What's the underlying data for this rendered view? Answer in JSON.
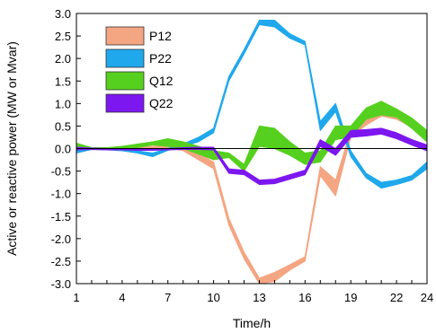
{
  "chart_data": {
    "type": "area",
    "title": "",
    "xlabel": "Time/h",
    "ylabel": "Active or reactive power (MW or Mvar)",
    "xlim": [
      1,
      24
    ],
    "ylim": [
      -3.0,
      3.0
    ],
    "x_ticks": [
      1,
      4,
      7,
      10,
      13,
      16,
      19,
      22,
      24
    ],
    "y_ticks": [
      "3.0",
      "2.5",
      "2.0",
      "1.5",
      "1.0",
      "0.5",
      "0.0",
      "-0.5",
      "-1.0",
      "-1.5",
      "-2.0",
      "-2.5",
      "-3.0"
    ],
    "y_tick_values": [
      3.0,
      2.5,
      2.0,
      1.5,
      1.0,
      0.5,
      0.0,
      -0.5,
      -1.0,
      -1.5,
      -2.0,
      -2.5,
      -3.0
    ],
    "grid": false,
    "legend_position": "top-left",
    "x": [
      1,
      2,
      3,
      4,
      5,
      6,
      7,
      8,
      9,
      10,
      11,
      12,
      13,
      14,
      15,
      16,
      17,
      18,
      19,
      20,
      21,
      22,
      23,
      24
    ],
    "series": [
      {
        "name": "P12",
        "color": "#F4A582",
        "upper": [
          0.02,
          0.0,
          0.0,
          0.0,
          0.02,
          0.05,
          0.08,
          0.02,
          -0.12,
          -0.3,
          -1.55,
          -2.3,
          -2.88,
          -2.75,
          -2.58,
          -2.4,
          -0.4,
          -0.7,
          0.4,
          0.65,
          0.82,
          0.75,
          0.62,
          0.3
        ],
        "lower": [
          0.0,
          -0.02,
          -0.02,
          -0.02,
          0.0,
          0.02,
          0.02,
          -0.05,
          -0.25,
          -0.45,
          -1.7,
          -2.45,
          -3.0,
          -2.95,
          -2.7,
          -2.5,
          -0.6,
          -1.05,
          0.25,
          0.52,
          0.72,
          0.65,
          0.48,
          0.15
        ]
      },
      {
        "name": "P22",
        "color": "#1FA8EC",
        "upper": [
          -0.03,
          0.0,
          0.0,
          -0.02,
          -0.05,
          -0.1,
          0.0,
          0.1,
          0.25,
          0.45,
          1.6,
          2.2,
          2.85,
          2.85,
          2.55,
          2.38,
          0.6,
          1.0,
          -0.05,
          -0.55,
          -0.75,
          -0.7,
          -0.6,
          -0.3
        ],
        "lower": [
          -0.1,
          -0.02,
          -0.03,
          -0.05,
          -0.1,
          -0.18,
          -0.04,
          0.05,
          0.15,
          0.35,
          1.5,
          2.1,
          2.75,
          2.7,
          2.45,
          2.3,
          0.4,
          0.82,
          -0.18,
          -0.65,
          -0.88,
          -0.8,
          -0.7,
          -0.45
        ]
      },
      {
        "name": "Q12",
        "color": "#55D01E",
        "upper": [
          0.12,
          0.02,
          0.02,
          0.05,
          0.1,
          0.15,
          0.22,
          0.15,
          0.05,
          -0.05,
          -0.1,
          -0.35,
          0.5,
          0.45,
          0.15,
          -0.1,
          -0.05,
          0.5,
          0.5,
          0.9,
          1.05,
          0.88,
          0.68,
          0.4
        ],
        "lower": [
          0.0,
          -0.02,
          -0.02,
          0.0,
          0.02,
          0.08,
          0.05,
          0.0,
          -0.12,
          -0.25,
          -0.2,
          -0.5,
          0.05,
          0.0,
          -0.15,
          -0.35,
          -0.3,
          0.2,
          0.25,
          0.65,
          0.75,
          0.7,
          0.45,
          0.15
        ]
      },
      {
        "name": "Q22",
        "color": "#7C17F0",
        "upper": [
          0.03,
          0.01,
          0.0,
          -0.01,
          -0.01,
          -0.01,
          0.0,
          0.02,
          0.03,
          0.03,
          -0.45,
          -0.48,
          -0.7,
          -0.68,
          -0.58,
          -0.48,
          0.2,
          0.0,
          0.4,
          0.42,
          0.45,
          0.35,
          0.2,
          0.08
        ],
        "lower": [
          -0.03,
          -0.02,
          -0.03,
          -0.03,
          -0.04,
          -0.04,
          -0.03,
          -0.02,
          -0.02,
          -0.03,
          -0.55,
          -0.58,
          -0.8,
          -0.78,
          -0.68,
          -0.58,
          0.05,
          -0.15,
          0.25,
          0.28,
          0.32,
          0.22,
          0.08,
          -0.05
        ]
      }
    ]
  }
}
